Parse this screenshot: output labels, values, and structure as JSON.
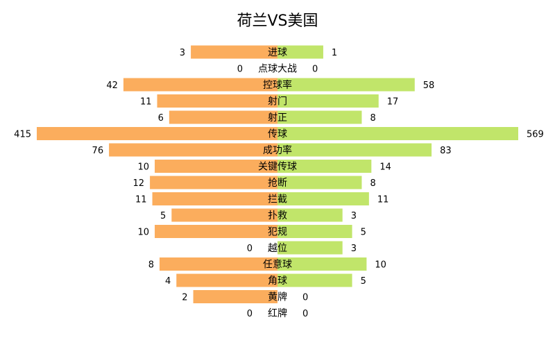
{
  "chart_data": {
    "type": "bar",
    "title": "荷兰VS美国",
    "colors": {
      "left": "#FBAD5D",
      "right": "#C1E56A"
    },
    "rows": [
      {
        "label": "进球",
        "left": 3,
        "right": 1,
        "left_display": "3",
        "right_display": "1",
        "left_fill": 0.36,
        "right_fill": 0.19
      },
      {
        "label": "点球大战",
        "left": 0,
        "right": 0,
        "left_display": "0",
        "right_display": "0",
        "left_fill": 0,
        "right_fill": 0
      },
      {
        "label": "控球率",
        "left": 42,
        "right": 58,
        "left_display": "42",
        "right_display": "58",
        "left_fill": 0.64,
        "right_fill": 0.57
      },
      {
        "label": "射门",
        "left": 11,
        "right": 17,
        "left_display": "11",
        "right_display": "17",
        "left_fill": 0.5,
        "right_fill": 0.42
      },
      {
        "label": "射正",
        "left": 6,
        "right": 8,
        "left_display": "6",
        "right_display": "8",
        "left_fill": 0.45,
        "right_fill": 0.35
      },
      {
        "label": "传球",
        "left": 415,
        "right": 569,
        "left_display": "415",
        "right_display": "569",
        "left_fill": 1.0,
        "right_fill": 1.0
      },
      {
        "label": "成功率",
        "left": 76,
        "right": 83,
        "left_display": "76",
        "right_display": "83",
        "left_fill": 0.7,
        "right_fill": 0.64
      },
      {
        "label": "关键传球",
        "left": 10,
        "right": 14,
        "left_display": "10",
        "right_display": "14",
        "left_fill": 0.51,
        "right_fill": 0.39
      },
      {
        "label": "抢断",
        "left": 12,
        "right": 8,
        "left_display": "12",
        "right_display": "8",
        "left_fill": 0.53,
        "right_fill": 0.35
      },
      {
        "label": "拦截",
        "left": 11,
        "right": 11,
        "left_display": "11",
        "right_display": "11",
        "left_fill": 0.52,
        "right_fill": 0.38
      },
      {
        "label": "扑救",
        "left": 5,
        "right": 3,
        "left_display": "5",
        "right_display": "3",
        "left_fill": 0.44,
        "right_fill": 0.27
      },
      {
        "label": "犯规",
        "left": 10,
        "right": 5,
        "left_display": "10",
        "right_display": "5",
        "left_fill": 0.51,
        "right_fill": 0.31
      },
      {
        "label": "越位",
        "left": 0,
        "right": 3,
        "left_display": "0",
        "right_display": "3",
        "left_fill": 0,
        "right_fill": 0.27
      },
      {
        "label": "任意球",
        "left": 8,
        "right": 10,
        "left_display": "8",
        "right_display": "10",
        "left_fill": 0.49,
        "right_fill": 0.37
      },
      {
        "label": "角球",
        "left": 4,
        "right": 5,
        "left_display": "4",
        "right_display": "5",
        "left_fill": 0.42,
        "right_fill": 0.31
      },
      {
        "label": "黄牌",
        "left": 2,
        "right": 0,
        "left_display": "2",
        "right_display": "0",
        "left_fill": 0.35,
        "right_fill": 0
      },
      {
        "label": "红牌",
        "left": 0,
        "right": 0,
        "left_display": "0",
        "right_display": "0",
        "left_fill": 0,
        "right_fill": 0
      }
    ]
  }
}
